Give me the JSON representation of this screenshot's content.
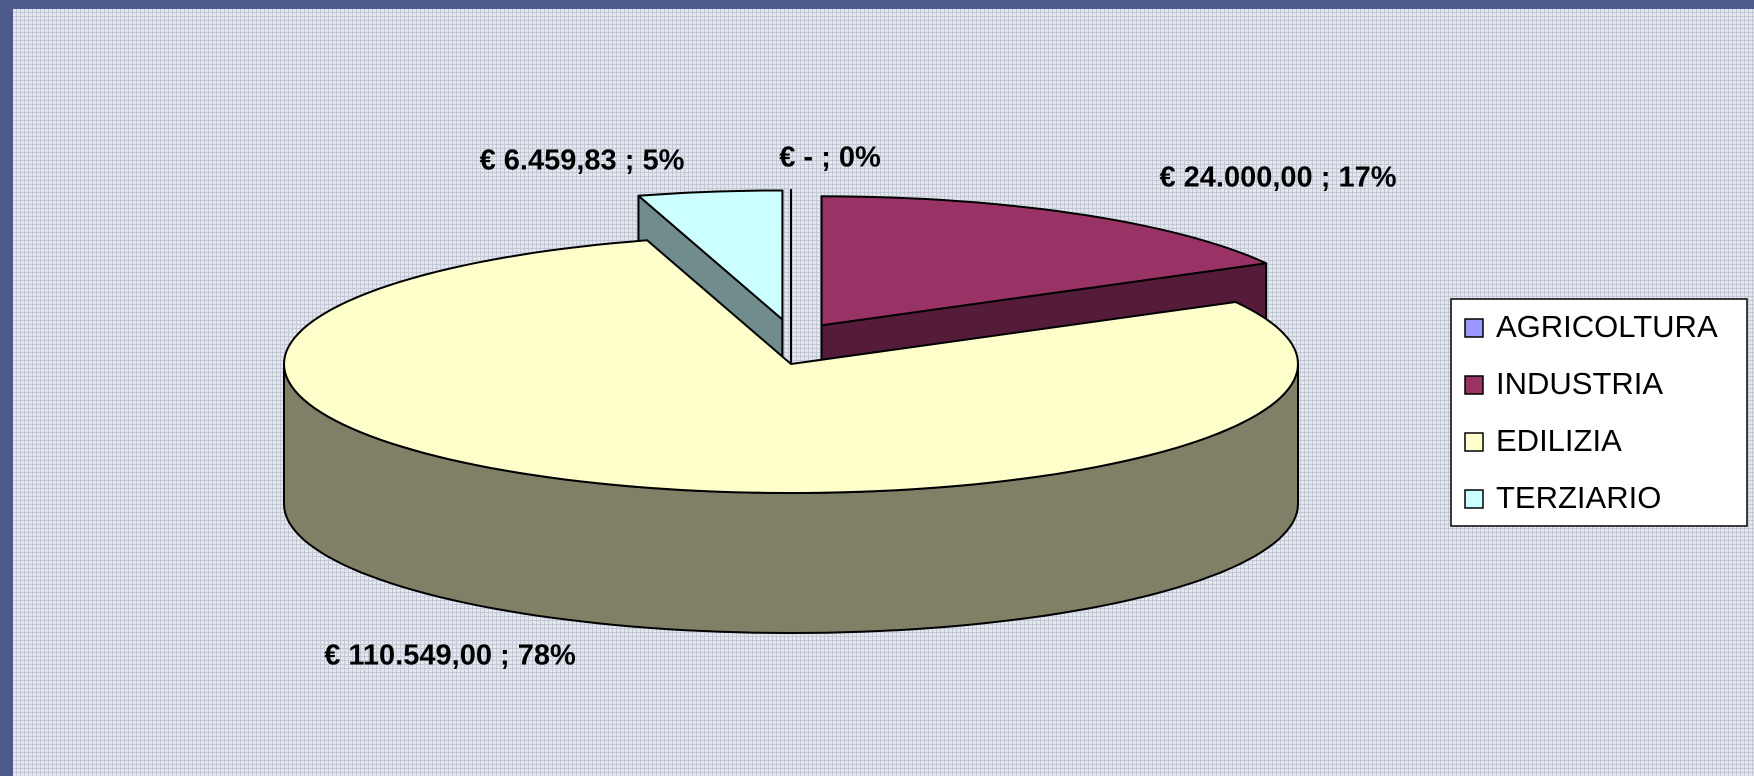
{
  "chart_data": {
    "type": "pie",
    "three_d": true,
    "categories": [
      "AGRICOLTURA",
      "INDUSTRIA",
      "EDILIZIA",
      "TERZIARIO"
    ],
    "values": [
      0,
      24000,
      110549,
      6459.83
    ],
    "value_labels": [
      "€ -   ; 0%",
      "€ 24.000,00 ; 17%",
      "€ 110.549,00 ; 78%",
      "€ 6.459,83 ; 5%"
    ],
    "colors": [
      "#9999ff",
      "#993366",
      "#ffffcc",
      "#ccffff"
    ],
    "exploded": [
      true,
      true,
      false,
      true
    ],
    "legend": "right"
  }
}
